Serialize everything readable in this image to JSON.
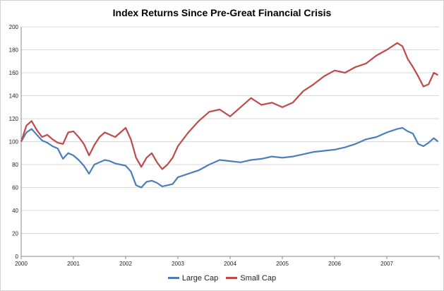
{
  "chart_data": {
    "type": "line",
    "title": "Index Returns Since Pre-Great Financial Crisis",
    "xlabel": "",
    "ylabel": "",
    "ylim": [
      0,
      200
    ],
    "xlim": [
      2000,
      2008
    ],
    "yticks": [
      "0",
      "20",
      "40",
      "60",
      "80",
      "100",
      "120",
      "140",
      "160",
      "180",
      "200"
    ],
    "xticks": [
      "2000",
      "2001",
      "2002",
      "2003",
      "2004",
      "2005",
      "2006",
      "2007"
    ],
    "grid": true,
    "legend_position": "bottom",
    "series": [
      {
        "name": "Large Cap",
        "color": "#4a7ebb",
        "x": [
          2000.0,
          2000.1,
          2000.2,
          2000.3,
          2000.4,
          2000.5,
          2000.6,
          2000.7,
          2000.8,
          2000.9,
          2001.0,
          2001.1,
          2001.2,
          2001.3,
          2001.4,
          2001.5,
          2001.6,
          2001.7,
          2001.8,
          2001.9,
          2002.0,
          2002.1,
          2002.2,
          2002.3,
          2002.4,
          2002.5,
          2002.6,
          2002.7,
          2002.8,
          2002.9,
          2003.0,
          2003.2,
          2003.4,
          2003.6,
          2003.8,
          2004.0,
          2004.2,
          2004.4,
          2004.6,
          2004.8,
          2005.0,
          2005.2,
          2005.4,
          2005.6,
          2005.8,
          2006.0,
          2006.2,
          2006.4,
          2006.6,
          2006.8,
          2007.0,
          2007.2,
          2007.3,
          2007.4,
          2007.5,
          2007.6,
          2007.7,
          2007.8,
          2007.9,
          2007.98
        ],
        "values": [
          100,
          108,
          111,
          106,
          101,
          99,
          96,
          94,
          85,
          90,
          88,
          84,
          79,
          72,
          80,
          82,
          84,
          83,
          81,
          80,
          79,
          74,
          62,
          60,
          65,
          66,
          64,
          61,
          62,
          63,
          69,
          72,
          75,
          80,
          84,
          83,
          82,
          84,
          85,
          87,
          86,
          87,
          89,
          91,
          92,
          93,
          95,
          98,
          102,
          104,
          108,
          111,
          112,
          109,
          107,
          98,
          96,
          99,
          103,
          100
        ]
      },
      {
        "name": "Small Cap",
        "color": "#be4b48",
        "x": [
          2000.0,
          2000.1,
          2000.2,
          2000.3,
          2000.4,
          2000.5,
          2000.6,
          2000.7,
          2000.8,
          2000.9,
          2001.0,
          2001.1,
          2001.2,
          2001.3,
          2001.4,
          2001.5,
          2001.6,
          2001.7,
          2001.8,
          2001.9,
          2002.0,
          2002.1,
          2002.2,
          2002.3,
          2002.4,
          2002.5,
          2002.6,
          2002.7,
          2002.8,
          2002.9,
          2003.0,
          2003.2,
          2003.4,
          2003.6,
          2003.8,
          2004.0,
          2004.2,
          2004.4,
          2004.6,
          2004.8,
          2005.0,
          2005.2,
          2005.4,
          2005.6,
          2005.8,
          2006.0,
          2006.2,
          2006.4,
          2006.6,
          2006.8,
          2007.0,
          2007.2,
          2007.3,
          2007.4,
          2007.5,
          2007.6,
          2007.7,
          2007.8,
          2007.9,
          2007.98
        ],
        "values": [
          100,
          114,
          118,
          110,
          104,
          106,
          102,
          99,
          98,
          108,
          109,
          104,
          98,
          88,
          97,
          104,
          108,
          106,
          104,
          108,
          112,
          102,
          86,
          78,
          86,
          90,
          82,
          76,
          80,
          86,
          96,
          108,
          118,
          126,
          128,
          122,
          130,
          138,
          132,
          134,
          130,
          134,
          144,
          150,
          157,
          162,
          160,
          165,
          168,
          175,
          180,
          186,
          183,
          172,
          165,
          157,
          148,
          150,
          160,
          158
        ]
      }
    ]
  }
}
